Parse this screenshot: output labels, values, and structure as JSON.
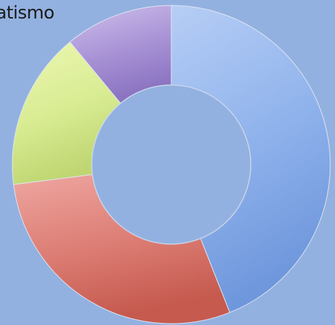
{
  "chart_data": {
    "type": "pie",
    "title": "atismo",
    "categories": [
      "",
      "",
      "",
      ""
    ],
    "values": [
      44,
      29,
      16,
      11
    ],
    "colors": [
      "#8fb2ec",
      "#dc7d74",
      "#d9ec93",
      "#a993d6"
    ],
    "colors_light": [
      "#b6cef5",
      "#eea6a0",
      "#ecf7b3",
      "#cfc0ec"
    ],
    "colors_dark": [
      "#6f97dc",
      "#c65a4f",
      "#bfd672",
      "#8c74c2"
    ],
    "donut": true,
    "legend": "none"
  }
}
